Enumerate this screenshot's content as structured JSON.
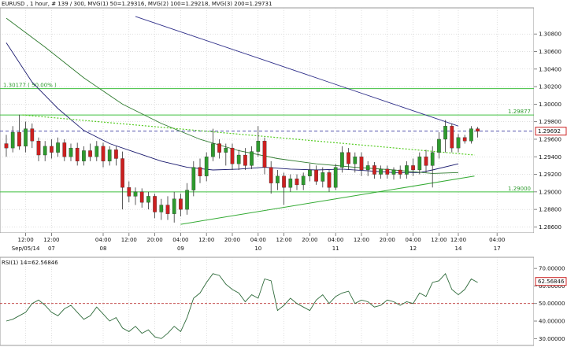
{
  "header": {
    "symbol": "EURUSD",
    "text": "EURUSD , 1 hour, # 139 / 300, MVG(1) 50=1.29316, MVG(2) 100=1.29218, MVG(3) 200=1.29731"
  },
  "colors": {
    "up": "#2e9a2e",
    "down": "#cc2020",
    "wick": "#333333",
    "ma50": "#1a1a6e",
    "ma100": "#2e7a2e",
    "ma200": "#30308a",
    "hline": "#3fbf3f",
    "trend": "#33aa33",
    "trend_dotted": "#55cc22",
    "price_line": "#3a3aa0",
    "rsi": "#2e6a3a",
    "rsi_level": "#bb3333",
    "grid": "#bfbfbf"
  },
  "price_axis": {
    "min": 1.2855,
    "max": 1.3108,
    "ticks": [
      "1.30800",
      "1.30600",
      "1.30400",
      "1.30200",
      "1.30000",
      "1.29800",
      "1.29600",
      "1.29400",
      "1.29200",
      "1.29000",
      "1.28800",
      "1.28600"
    ],
    "current_price": "1.29692"
  },
  "rsi_axis": {
    "label": "RSI(1) 14=62.56846",
    "ticks": [
      "70.00000",
      "60.00000",
      "50.00000",
      "40.00000",
      "30.00000"
    ],
    "current": "62.56846",
    "level": 50,
    "min": 27,
    "max": 75
  },
  "levels": [
    {
      "label": "1.30177 ( 50.00% )",
      "price": 1.30177
    },
    {
      "label": "1.29877",
      "price": 1.29877
    },
    {
      "label": "1.29000",
      "price": 1.29
    }
  ],
  "x_labels": [
    {
      "label": "12:00",
      "bar": 3
    },
    {
      "label": "12:00",
      "bar": 7
    },
    {
      "label": "04:00",
      "bar": 15
    },
    {
      "label": "12:00",
      "bar": 19
    },
    {
      "label": "20:00",
      "bar": 23
    },
    {
      "label": "04:00",
      "bar": 27
    },
    {
      "label": "12:00",
      "bar": 31
    },
    {
      "label": "20:00",
      "bar": 35
    },
    {
      "label": "04:00",
      "bar": 39
    },
    {
      "label": "12:00",
      "bar": 43
    },
    {
      "label": "20:00",
      "bar": 47
    },
    {
      "label": "04:00",
      "bar": 51
    },
    {
      "label": "12:00",
      "bar": 55
    },
    {
      "label": "20:00",
      "bar": 59
    },
    {
      "label": "04:00",
      "bar": 63
    },
    {
      "label": "12:00",
      "bar": 67
    },
    {
      "label": "12:00",
      "bar": 70
    },
    {
      "label": "04:00",
      "bar": 76
    }
  ],
  "date_labels": [
    {
      "label": "Sep/05/14",
      "bar": 3
    },
    {
      "label": "07",
      "bar": 7
    },
    {
      "label": "08",
      "bar": 15
    },
    {
      "label": "09",
      "bar": 27
    },
    {
      "label": "10",
      "bar": 39
    },
    {
      "label": "11",
      "bar": 51
    },
    {
      "label": "12",
      "bar": 63
    },
    {
      "label": "14",
      "bar": 70
    },
    {
      "label": "17",
      "bar": 76
    }
  ],
  "chart_data": {
    "type": "candlestick",
    "title": "EURUSD , 1 hour",
    "candles": [
      {
        "o": 1.2955,
        "h": 1.2965,
        "l": 1.294,
        "c": 1.295
      },
      {
        "o": 1.295,
        "h": 1.2975,
        "l": 1.2945,
        "c": 1.2968
      },
      {
        "o": 1.2968,
        "h": 1.2988,
        "l": 1.2948,
        "c": 1.2952
      },
      {
        "o": 1.2952,
        "h": 1.298,
        "l": 1.2945,
        "c": 1.2972
      },
      {
        "o": 1.2972,
        "h": 1.2978,
        "l": 1.295,
        "c": 1.2958
      },
      {
        "o": 1.2958,
        "h": 1.2962,
        "l": 1.2935,
        "c": 1.2942
      },
      {
        "o": 1.2942,
        "h": 1.2958,
        "l": 1.2935,
        "c": 1.2952
      },
      {
        "o": 1.2952,
        "h": 1.296,
        "l": 1.2938,
        "c": 1.2945
      },
      {
        "o": 1.2945,
        "h": 1.2962,
        "l": 1.294,
        "c": 1.2956
      },
      {
        "o": 1.2956,
        "h": 1.296,
        "l": 1.2935,
        "c": 1.294
      },
      {
        "o": 1.294,
        "h": 1.2955,
        "l": 1.2935,
        "c": 1.295
      },
      {
        "o": 1.295,
        "h": 1.2956,
        "l": 1.293,
        "c": 1.2935
      },
      {
        "o": 1.2935,
        "h": 1.2952,
        "l": 1.293,
        "c": 1.2947
      },
      {
        "o": 1.2947,
        "h": 1.2955,
        "l": 1.2935,
        "c": 1.294
      },
      {
        "o": 1.294,
        "h": 1.2958,
        "l": 1.2935,
        "c": 1.2952
      },
      {
        "o": 1.2952,
        "h": 1.2956,
        "l": 1.2928,
        "c": 1.2935
      },
      {
        "o": 1.2935,
        "h": 1.2952,
        "l": 1.293,
        "c": 1.2948
      },
      {
        "o": 1.2948,
        "h": 1.2952,
        "l": 1.293,
        "c": 1.2938
      },
      {
        "o": 1.2938,
        "h": 1.2946,
        "l": 1.288,
        "c": 1.2905
      },
      {
        "o": 1.2905,
        "h": 1.2912,
        "l": 1.2888,
        "c": 1.2895
      },
      {
        "o": 1.2895,
        "h": 1.2905,
        "l": 1.2885,
        "c": 1.29
      },
      {
        "o": 1.29,
        "h": 1.2904,
        "l": 1.2882,
        "c": 1.2888
      },
      {
        "o": 1.2888,
        "h": 1.29,
        "l": 1.288,
        "c": 1.2895
      },
      {
        "o": 1.2895,
        "h": 1.2898,
        "l": 1.287,
        "c": 1.2877
      },
      {
        "o": 1.2877,
        "h": 1.2892,
        "l": 1.2868,
        "c": 1.2885
      },
      {
        "o": 1.2885,
        "h": 1.2895,
        "l": 1.2868,
        "c": 1.2875
      },
      {
        "o": 1.2875,
        "h": 1.29,
        "l": 1.2865,
        "c": 1.2892
      },
      {
        "o": 1.2892,
        "h": 1.2898,
        "l": 1.2872,
        "c": 1.288
      },
      {
        "o": 1.288,
        "h": 1.291,
        "l": 1.2874,
        "c": 1.2902
      },
      {
        "o": 1.2902,
        "h": 1.2935,
        "l": 1.2895,
        "c": 1.2928
      },
      {
        "o": 1.2928,
        "h": 1.2938,
        "l": 1.291,
        "c": 1.2918
      },
      {
        "o": 1.2918,
        "h": 1.2945,
        "l": 1.2912,
        "c": 1.294
      },
      {
        "o": 1.294,
        "h": 1.2972,
        "l": 1.2935,
        "c": 1.2955
      },
      {
        "o": 1.2955,
        "h": 1.296,
        "l": 1.2938,
        "c": 1.2945
      },
      {
        "o": 1.2945,
        "h": 1.2955,
        "l": 1.293,
        "c": 1.295
      },
      {
        "o": 1.295,
        "h": 1.2955,
        "l": 1.2925,
        "c": 1.2932
      },
      {
        "o": 1.2932,
        "h": 1.2948,
        "l": 1.2925,
        "c": 1.2942
      },
      {
        "o": 1.2942,
        "h": 1.295,
        "l": 1.2925,
        "c": 1.293
      },
      {
        "o": 1.293,
        "h": 1.2952,
        "l": 1.2926,
        "c": 1.2946
      },
      {
        "o": 1.2946,
        "h": 1.2975,
        "l": 1.294,
        "c": 1.2958
      },
      {
        "o": 1.2958,
        "h": 1.2962,
        "l": 1.292,
        "c": 1.2928
      },
      {
        "o": 1.2928,
        "h": 1.2935,
        "l": 1.2898,
        "c": 1.291
      },
      {
        "o": 1.291,
        "h": 1.2925,
        "l": 1.2902,
        "c": 1.2918
      },
      {
        "o": 1.2918,
        "h": 1.2922,
        "l": 1.2885,
        "c": 1.2905
      },
      {
        "o": 1.2905,
        "h": 1.292,
        "l": 1.29,
        "c": 1.2915
      },
      {
        "o": 1.2915,
        "h": 1.292,
        "l": 1.2902,
        "c": 1.2908
      },
      {
        "o": 1.2908,
        "h": 1.2922,
        "l": 1.2902,
        "c": 1.2918
      },
      {
        "o": 1.2918,
        "h": 1.2932,
        "l": 1.2912,
        "c": 1.2925
      },
      {
        "o": 1.2925,
        "h": 1.293,
        "l": 1.2908,
        "c": 1.2912
      },
      {
        "o": 1.2912,
        "h": 1.2928,
        "l": 1.2905,
        "c": 1.2922
      },
      {
        "o": 1.2922,
        "h": 1.2925,
        "l": 1.29,
        "c": 1.2905
      },
      {
        "o": 1.2905,
        "h": 1.2932,
        "l": 1.2902,
        "c": 1.2928
      },
      {
        "o": 1.2928,
        "h": 1.2952,
        "l": 1.2922,
        "c": 1.2945
      },
      {
        "o": 1.2945,
        "h": 1.295,
        "l": 1.2925,
        "c": 1.2932
      },
      {
        "o": 1.2932,
        "h": 1.2945,
        "l": 1.2922,
        "c": 1.294
      },
      {
        "o": 1.294,
        "h": 1.2945,
        "l": 1.2918,
        "c": 1.2925
      },
      {
        "o": 1.2925,
        "h": 1.2935,
        "l": 1.2918,
        "c": 1.293
      },
      {
        "o": 1.293,
        "h": 1.2934,
        "l": 1.2915,
        "c": 1.292
      },
      {
        "o": 1.292,
        "h": 1.293,
        "l": 1.2915,
        "c": 1.2926
      },
      {
        "o": 1.2926,
        "h": 1.293,
        "l": 1.2915,
        "c": 1.292
      },
      {
        "o": 1.292,
        "h": 1.2928,
        "l": 1.2914,
        "c": 1.2925
      },
      {
        "o": 1.2925,
        "h": 1.293,
        "l": 1.2915,
        "c": 1.292
      },
      {
        "o": 1.292,
        "h": 1.2935,
        "l": 1.2915,
        "c": 1.293
      },
      {
        "o": 1.293,
        "h": 1.2938,
        "l": 1.2918,
        "c": 1.2925
      },
      {
        "o": 1.2925,
        "h": 1.2945,
        "l": 1.292,
        "c": 1.294
      },
      {
        "o": 1.294,
        "h": 1.2948,
        "l": 1.2922,
        "c": 1.293
      },
      {
        "o": 1.293,
        "h": 1.2952,
        "l": 1.2905,
        "c": 1.2945
      },
      {
        "o": 1.2945,
        "h": 1.2968,
        "l": 1.2938,
        "c": 1.296
      },
      {
        "o": 1.296,
        "h": 1.2982,
        "l": 1.2945,
        "c": 1.2975
      },
      {
        "o": 1.2975,
        "h": 1.2978,
        "l": 1.2945,
        "c": 1.295
      },
      {
        "o": 1.295,
        "h": 1.2966,
        "l": 1.2945,
        "c": 1.2962
      },
      {
        "o": 1.2962,
        "h": 1.2965,
        "l": 1.2955,
        "c": 1.2958
      },
      {
        "o": 1.2958,
        "h": 1.2975,
        "l": 1.2955,
        "c": 1.2972
      },
      {
        "o": 1.2972,
        "h": 1.2974,
        "l": 1.2962,
        "c": 1.2969
      }
    ],
    "series": [
      {
        "name": "MVG(1) 50",
        "points": [
          [
            0,
            1.307
          ],
          [
            4,
            1.3025
          ],
          [
            8,
            1.2995
          ],
          [
            12,
            1.297
          ],
          [
            16,
            1.2955
          ],
          [
            20,
            1.2945
          ],
          [
            24,
            1.2935
          ],
          [
            28,
            1.2928
          ],
          [
            32,
            1.2925
          ],
          [
            36,
            1.2926
          ],
          [
            40,
            1.2928
          ],
          [
            44,
            1.2926
          ],
          [
            48,
            1.2925
          ],
          [
            52,
            1.2926
          ],
          [
            56,
            1.2924
          ],
          [
            60,
            1.2922
          ],
          [
            64,
            1.2922
          ],
          [
            66,
            1.2925
          ],
          [
            70,
            1.2932
          ]
        ]
      },
      {
        "name": "MVG(2) 100",
        "points": [
          [
            0,
            1.3098
          ],
          [
            6,
            1.3065
          ],
          [
            12,
            1.303
          ],
          [
            18,
            1.3
          ],
          [
            24,
            1.2978
          ],
          [
            30,
            1.296
          ],
          [
            36,
            1.2947
          ],
          [
            42,
            1.2938
          ],
          [
            48,
            1.2932
          ],
          [
            54,
            1.2928
          ],
          [
            60,
            1.2925
          ],
          [
            66,
            1.2921
          ],
          [
            70,
            1.2922
          ]
        ]
      },
      {
        "name": "MVG(3) 200",
        "points": [
          [
            20,
            1.31
          ],
          [
            30,
            1.3075
          ],
          [
            40,
            1.305
          ],
          [
            50,
            1.3025
          ],
          [
            60,
            1.3
          ],
          [
            66,
            1.2985
          ],
          [
            70,
            1.2975
          ]
        ]
      }
    ],
    "rsi": [
      40,
      41,
      43,
      45,
      50,
      52,
      49,
      45,
      43,
      47,
      49,
      45,
      41,
      43,
      48,
      44,
      40,
      42,
      36,
      34,
      37,
      33,
      35,
      31,
      30,
      33,
      37,
      34,
      42,
      53,
      56,
      62,
      67,
      66,
      61,
      58,
      56,
      51,
      55,
      53,
      64,
      63,
      46,
      49,
      53,
      50,
      48,
      46,
      52,
      55,
      50,
      54,
      56,
      57,
      50,
      52,
      51,
      48,
      49,
      52,
      51,
      49,
      51,
      50,
      56,
      54,
      62,
      63,
      67,
      58,
      55,
      58,
      64,
      62
    ]
  }
}
